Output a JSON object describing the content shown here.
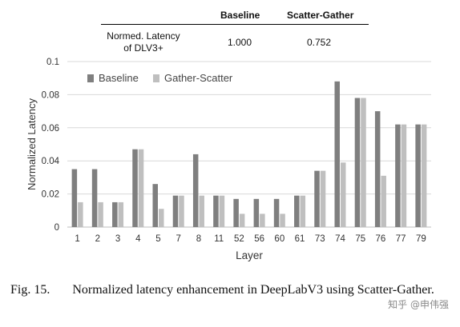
{
  "table": {
    "headers": [
      "Baseline",
      "Scatter-Gather"
    ],
    "row_label_line1": "Normed. Latency",
    "row_label_line2": "of DLV3+",
    "values": [
      "1.000",
      "0.752"
    ]
  },
  "chart_data": {
    "type": "bar",
    "xlabel": "Layer",
    "ylabel": "Normalized Latency",
    "ylim": [
      0,
      0.1
    ],
    "yticks": [
      "0",
      "0.02",
      "0.04",
      "0.06",
      "0.08",
      "0.1"
    ],
    "categories": [
      "1",
      "2",
      "3",
      "4",
      "5",
      "7",
      "8",
      "11",
      "52",
      "56",
      "60",
      "61",
      "73",
      "74",
      "75",
      "76",
      "77",
      "79"
    ],
    "series": [
      {
        "name": "Baseline",
        "color": "#7f7f7f",
        "values": [
          0.035,
          0.035,
          0.015,
          0.047,
          0.026,
          0.019,
          0.044,
          0.019,
          0.017,
          0.017,
          0.017,
          0.019,
          0.034,
          0.088,
          0.078,
          0.07,
          0.062,
          0.062
        ]
      },
      {
        "name": "Gather-Scatter",
        "color": "#bfbfbf",
        "values": [
          0.015,
          0.015,
          0.015,
          0.047,
          0.011,
          0.019,
          0.019,
          0.019,
          0.008,
          0.008,
          0.008,
          0.019,
          0.034,
          0.039,
          0.078,
          0.031,
          0.062,
          0.062
        ]
      }
    ],
    "grid": "horizontal",
    "legend": "top-left"
  },
  "caption": {
    "label": "Fig. 15.",
    "text": "Normalized latency enhancement in DeepLabV3 using Scatter-Gather."
  },
  "watermark": "知乎 @申伟强"
}
